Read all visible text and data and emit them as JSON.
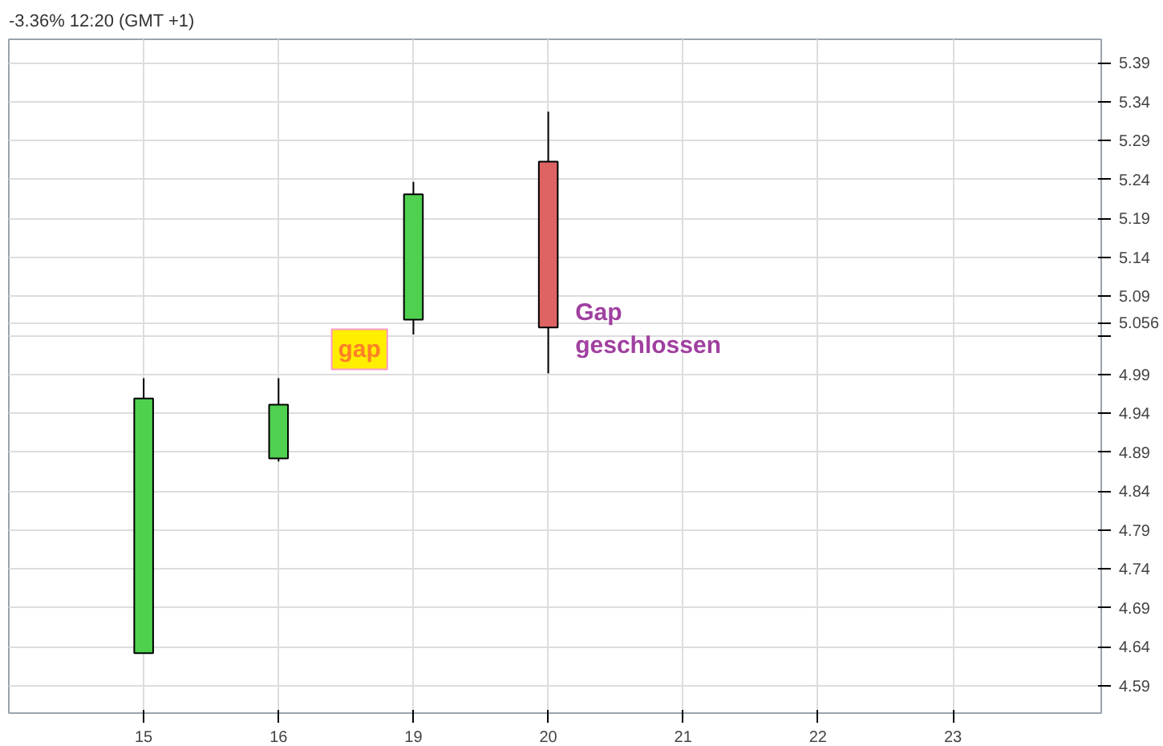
{
  "chart_data": {
    "type": "candlestick",
    "title": "-3.36%  12:20  (GMT +1)",
    "categories": [
      "15",
      "16",
      "19",
      "20",
      "21",
      "22",
      "23"
    ],
    "ohlc": [
      [
        4.632,
        4.985,
        4.632,
        4.959
      ],
      [
        4.882,
        4.985,
        4.878,
        4.951
      ],
      [
        5.06,
        5.237,
        5.041,
        5.221
      ],
      [
        5.263,
        5.327,
        4.991,
        5.05
      ],
      null,
      null,
      null
    ],
    "colors": [
      "#4fd14f",
      "#4fd14f",
      "#4fd14f",
      "#de6464",
      null,
      null,
      null
    ],
    "ylim": [
      4.555,
      5.42
    ],
    "yticks": [
      4.59,
      4.64,
      4.69,
      4.74,
      4.79,
      4.84,
      4.89,
      4.94,
      4.99,
      {
        "value": 5.04,
        "label": null
      },
      5.056,
      5.09,
      5.14,
      5.19,
      5.24,
      5.29,
      5.34,
      5.39
    ],
    "annotations": [
      "gap",
      "Gap\ngeschlossen"
    ],
    "grid": true
  }
}
